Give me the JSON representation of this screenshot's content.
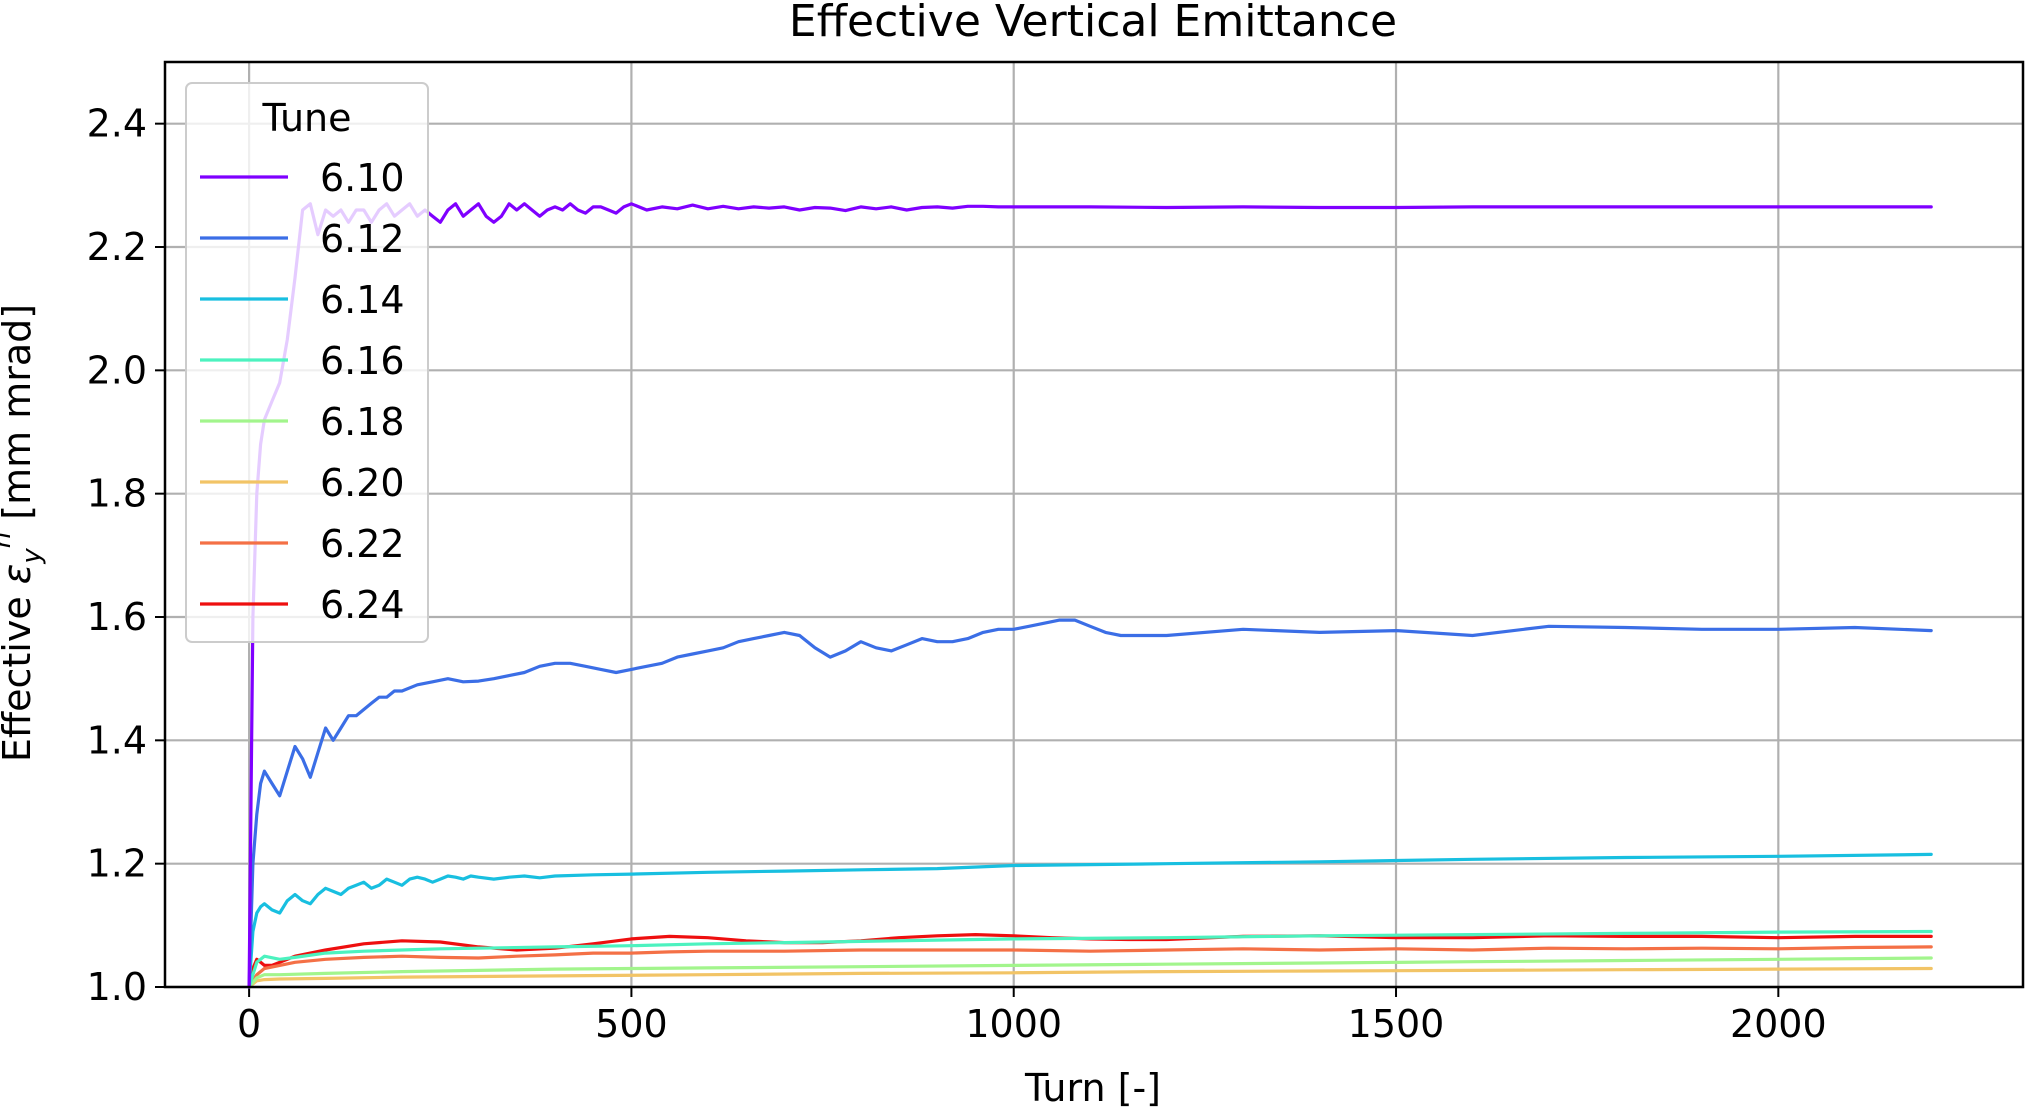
{
  "chart_data": {
    "type": "line",
    "title": "Effective Vertical Emittance",
    "xlabel": "Turn [-]",
    "ylabel_prefix": "Effective ",
    "ylabel_symbol": "ε",
    "ylabel_sub": "y",
    "ylabel_sup": "n",
    "ylabel_suffix": " [mm mrad]",
    "xlim": [
      -110,
      2320
    ],
    "ylim": [
      1.0,
      2.5
    ],
    "x_ticks": [
      0,
      500,
      1000,
      1500,
      2000
    ],
    "x_tick_labels": [
      "0",
      "500",
      "1000",
      "1500",
      "2000"
    ],
    "y_ticks": [
      1.0,
      1.2,
      1.4,
      1.6,
      1.8,
      2.0,
      2.2,
      2.4
    ],
    "y_tick_labels": [
      "1.0",
      "1.2",
      "1.4",
      "1.6",
      "1.8",
      "2.0",
      "2.2",
      "2.4"
    ],
    "grid": true,
    "legend_title": "Tune",
    "legend_position": "top-left",
    "series": [
      {
        "name": "6.10",
        "color": "#7f00ff",
        "x": [
          0,
          5,
          10,
          15,
          20,
          30,
          40,
          50,
          60,
          70,
          80,
          90,
          100,
          110,
          120,
          130,
          140,
          150,
          160,
          170,
          180,
          190,
          200,
          210,
          220,
          230,
          240,
          250,
          260,
          270,
          280,
          290,
          300,
          310,
          320,
          330,
          340,
          350,
          360,
          370,
          380,
          390,
          400,
          410,
          420,
          430,
          440,
          450,
          460,
          470,
          480,
          490,
          500,
          520,
          540,
          560,
          580,
          600,
          620,
          640,
          660,
          680,
          700,
          720,
          740,
          760,
          780,
          800,
          820,
          840,
          860,
          880,
          900,
          920,
          940,
          960,
          980,
          1000,
          1100,
          1200,
          1300,
          1400,
          1500,
          1600,
          1700,
          1800,
          1900,
          2000,
          2100,
          2200
        ],
        "y": [
          1.0,
          1.6,
          1.8,
          1.88,
          1.92,
          1.95,
          1.98,
          2.05,
          2.15,
          2.26,
          2.27,
          2.22,
          2.26,
          2.25,
          2.26,
          2.24,
          2.26,
          2.26,
          2.24,
          2.26,
          2.27,
          2.25,
          2.26,
          2.27,
          2.25,
          2.26,
          2.25,
          2.24,
          2.26,
          2.27,
          2.25,
          2.26,
          2.27,
          2.25,
          2.24,
          2.25,
          2.27,
          2.26,
          2.27,
          2.26,
          2.25,
          2.26,
          2.265,
          2.26,
          2.27,
          2.26,
          2.255,
          2.265,
          2.265,
          2.26,
          2.255,
          2.265,
          2.27,
          2.26,
          2.265,
          2.262,
          2.268,
          2.262,
          2.266,
          2.262,
          2.265,
          2.263,
          2.265,
          2.26,
          2.264,
          2.263,
          2.259,
          2.265,
          2.262,
          2.265,
          2.26,
          2.264,
          2.265,
          2.263,
          2.266,
          2.266,
          2.265,
          2.265,
          2.265,
          2.264,
          2.265,
          2.264,
          2.264,
          2.265,
          2.265,
          2.265,
          2.265,
          2.265,
          2.265,
          2.265
        ]
      },
      {
        "name": "6.12",
        "color": "#3b6ee6",
        "x": [
          0,
          5,
          10,
          15,
          20,
          30,
          40,
          50,
          60,
          70,
          80,
          90,
          100,
          110,
          120,
          130,
          140,
          150,
          160,
          170,
          180,
          190,
          200,
          220,
          240,
          260,
          280,
          300,
          320,
          340,
          360,
          380,
          400,
          420,
          440,
          460,
          480,
          500,
          520,
          540,
          560,
          580,
          600,
          620,
          640,
          660,
          680,
          700,
          720,
          740,
          760,
          780,
          800,
          820,
          840,
          860,
          880,
          900,
          920,
          940,
          960,
          980,
          1000,
          1020,
          1040,
          1060,
          1080,
          1100,
          1120,
          1140,
          1160,
          1200,
          1300,
          1400,
          1500,
          1600,
          1700,
          1800,
          1900,
          2000,
          2100,
          2200
        ],
        "y": [
          1.0,
          1.2,
          1.28,
          1.33,
          1.35,
          1.33,
          1.31,
          1.35,
          1.39,
          1.37,
          1.34,
          1.38,
          1.42,
          1.4,
          1.42,
          1.44,
          1.44,
          1.45,
          1.46,
          1.47,
          1.47,
          1.48,
          1.48,
          1.49,
          1.495,
          1.5,
          1.495,
          1.496,
          1.5,
          1.505,
          1.51,
          1.52,
          1.525,
          1.525,
          1.52,
          1.515,
          1.51,
          1.515,
          1.52,
          1.525,
          1.535,
          1.54,
          1.545,
          1.55,
          1.56,
          1.565,
          1.57,
          1.575,
          1.57,
          1.55,
          1.535,
          1.545,
          1.56,
          1.55,
          1.545,
          1.555,
          1.565,
          1.56,
          1.56,
          1.565,
          1.575,
          1.58,
          1.58,
          1.585,
          1.59,
          1.595,
          1.595,
          1.585,
          1.575,
          1.57,
          1.57,
          1.57,
          1.58,
          1.575,
          1.578,
          1.57,
          1.585,
          1.583,
          1.58,
          1.58,
          1.583,
          1.578
        ]
      },
      {
        "name": "6.14",
        "color": "#18bfe0",
        "x": [
          0,
          5,
          10,
          15,
          20,
          30,
          40,
          50,
          60,
          70,
          80,
          90,
          100,
          110,
          120,
          130,
          140,
          150,
          160,
          170,
          180,
          190,
          200,
          210,
          220,
          230,
          240,
          250,
          260,
          270,
          280,
          290,
          300,
          320,
          340,
          360,
          380,
          400,
          450,
          500,
          600,
          700,
          800,
          900,
          1000,
          1200,
          1400,
          1600,
          1800,
          2000,
          2200
        ],
        "y": [
          1.0,
          1.09,
          1.12,
          1.13,
          1.135,
          1.125,
          1.12,
          1.14,
          1.15,
          1.14,
          1.135,
          1.15,
          1.16,
          1.155,
          1.15,
          1.16,
          1.165,
          1.17,
          1.16,
          1.165,
          1.175,
          1.17,
          1.165,
          1.175,
          1.178,
          1.175,
          1.17,
          1.175,
          1.18,
          1.178,
          1.175,
          1.18,
          1.178,
          1.175,
          1.178,
          1.18,
          1.177,
          1.18,
          1.182,
          1.183,
          1.186,
          1.188,
          1.19,
          1.192,
          1.197,
          1.2,
          1.203,
          1.207,
          1.21,
          1.212,
          1.215
        ]
      },
      {
        "name": "6.16",
        "color": "#4cf2bf",
        "x": [
          0,
          10,
          20,
          40,
          60,
          100,
          150,
          200,
          250,
          300,
          400,
          500,
          600,
          700,
          800,
          900,
          1000,
          1200,
          1400,
          1600,
          1800,
          2000,
          2200
        ],
        "y": [
          1.0,
          1.04,
          1.05,
          1.045,
          1.048,
          1.055,
          1.058,
          1.06,
          1.062,
          1.063,
          1.065,
          1.067,
          1.07,
          1.072,
          1.074,
          1.076,
          1.078,
          1.08,
          1.083,
          1.085,
          1.087,
          1.089,
          1.09
        ]
      },
      {
        "name": "6.18",
        "color": "#a2f58c",
        "x": [
          0,
          10,
          20,
          40,
          100,
          200,
          300,
          400,
          500,
          600,
          800,
          1000,
          1200,
          1400,
          1600,
          1800,
          2000,
          2200
        ],
        "y": [
          1.0,
          1.015,
          1.02,
          1.02,
          1.022,
          1.025,
          1.027,
          1.029,
          1.03,
          1.031,
          1.033,
          1.035,
          1.037,
          1.039,
          1.041,
          1.043,
          1.045,
          1.047
        ]
      },
      {
        "name": "6.20",
        "color": "#f2c466",
        "x": [
          0,
          10,
          20,
          40,
          100,
          200,
          400,
          600,
          800,
          1000,
          1200,
          1400,
          1600,
          1800,
          2000,
          2200
        ],
        "y": [
          1.0,
          1.01,
          1.012,
          1.013,
          1.014,
          1.016,
          1.018,
          1.02,
          1.022,
          1.023,
          1.025,
          1.026,
          1.027,
          1.028,
          1.029,
          1.03
        ]
      },
      {
        "name": "6.22",
        "color": "#f47046",
        "x": [
          0,
          10,
          20,
          40,
          60,
          100,
          150,
          200,
          250,
          300,
          350,
          400,
          450,
          500,
          550,
          600,
          700,
          800,
          900,
          1000,
          1100,
          1200,
          1300,
          1400,
          1500,
          1600,
          1700,
          1800,
          1900,
          2000,
          2100,
          2200
        ],
        "y": [
          1.0,
          1.02,
          1.03,
          1.035,
          1.04,
          1.045,
          1.048,
          1.05,
          1.048,
          1.047,
          1.05,
          1.052,
          1.055,
          1.055,
          1.057,
          1.058,
          1.058,
          1.06,
          1.06,
          1.06,
          1.058,
          1.06,
          1.062,
          1.06,
          1.062,
          1.06,
          1.063,
          1.062,
          1.063,
          1.062,
          1.064,
          1.065
        ]
      },
      {
        "name": "6.24",
        "color": "#ee0f0f",
        "x": [
          0,
          5,
          10,
          15,
          20,
          30,
          40,
          50,
          60,
          80,
          100,
          150,
          200,
          250,
          300,
          350,
          400,
          450,
          500,
          550,
          600,
          650,
          700,
          750,
          800,
          850,
          900,
          950,
          1000,
          1050,
          1100,
          1150,
          1200,
          1300,
          1400,
          1500,
          1600,
          1700,
          1800,
          1900,
          2000,
          2100,
          2200
        ],
        "y": [
          1.0,
          1.03,
          1.045,
          1.04,
          1.035,
          1.035,
          1.04,
          1.045,
          1.05,
          1.055,
          1.06,
          1.07,
          1.075,
          1.073,
          1.065,
          1.06,
          1.063,
          1.07,
          1.078,
          1.082,
          1.08,
          1.075,
          1.072,
          1.072,
          1.075,
          1.08,
          1.083,
          1.085,
          1.083,
          1.08,
          1.078,
          1.077,
          1.077,
          1.082,
          1.083,
          1.08,
          1.08,
          1.083,
          1.082,
          1.082,
          1.08,
          1.082,
          1.082
        ]
      }
    ]
  }
}
